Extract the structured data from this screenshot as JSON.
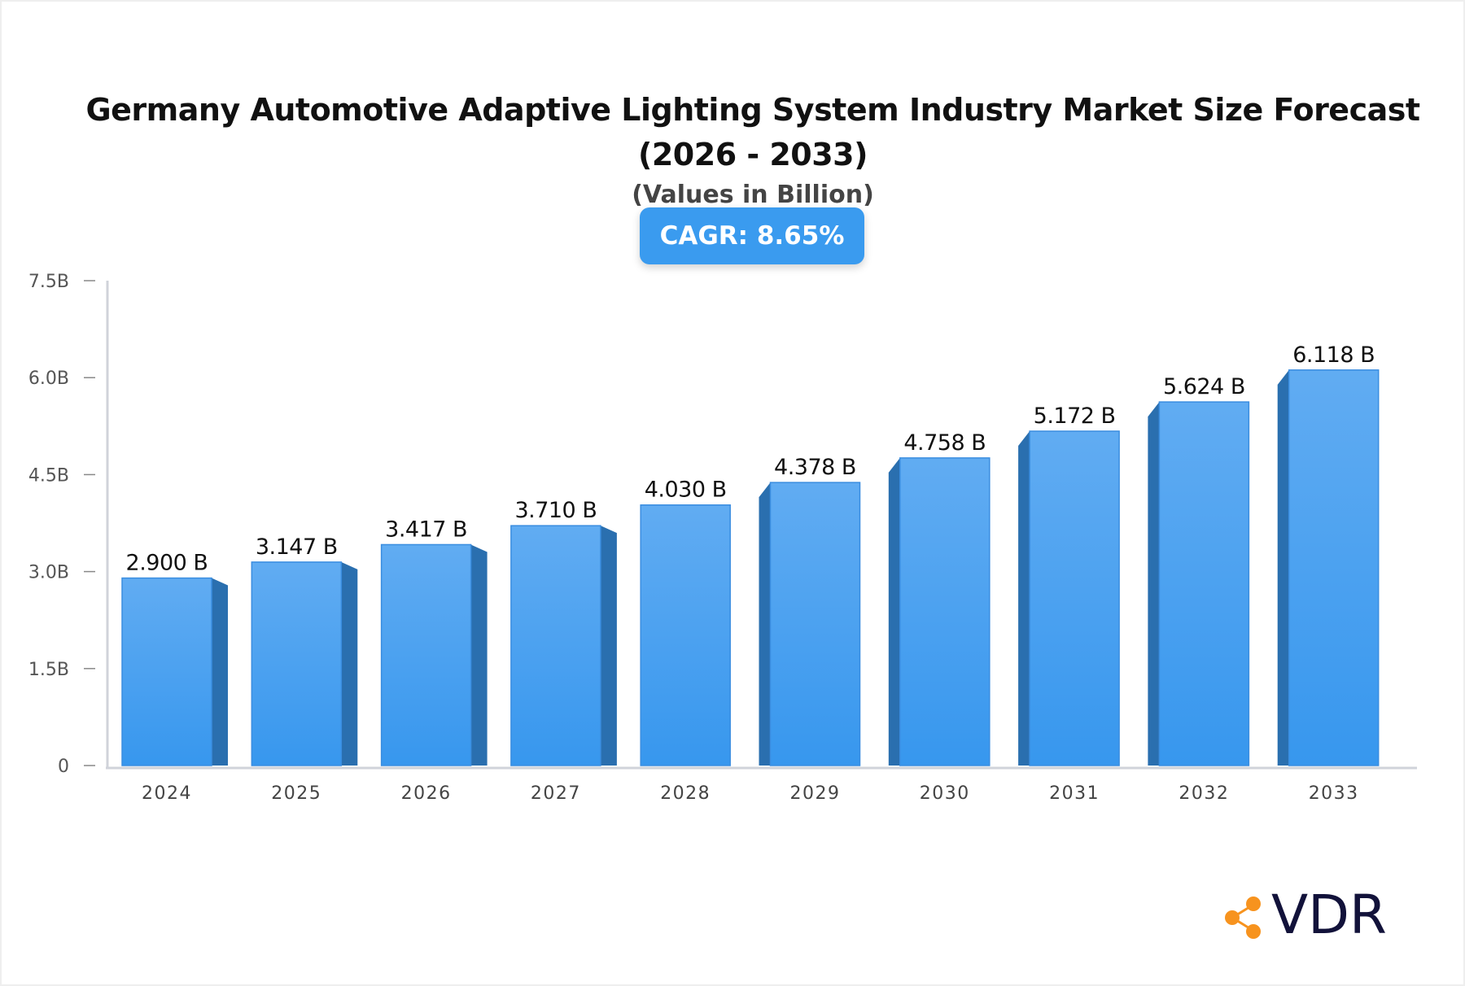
{
  "chart_data": {
    "type": "bar",
    "title_line1": "Germany Automotive Adaptive Lighting System Industry Market Size Forecast",
    "title_line2": "(2026 - 2033)",
    "subtitle": "(Values in Billion)",
    "cagr_label": "CAGR: 8.65%",
    "categories": [
      "2024",
      "2025",
      "2026",
      "2027",
      "2028",
      "2029",
      "2030",
      "2031",
      "2032",
      "2033"
    ],
    "values": [
      2.9,
      3.147,
      3.417,
      3.71,
      4.03,
      4.378,
      4.758,
      5.172,
      5.624,
      6.118
    ],
    "value_labels": [
      "2.900 B",
      "3.147 B",
      "3.417 B",
      "3.710 B",
      "4.030 B",
      "4.378 B",
      "4.758 B",
      "5.172 B",
      "5.624 B",
      "6.118 B"
    ],
    "yticks": [
      0,
      1.5,
      3.0,
      4.5,
      6.0,
      7.5
    ],
    "ytick_labels": [
      "0",
      "1.5B",
      "3.0B",
      "4.5B",
      "6.0B",
      "7.5B"
    ],
    "ylim": [
      0,
      7.5
    ],
    "xlabel": "",
    "ylabel": "",
    "colors": {
      "bar_top": "#61acf2",
      "bar_bottom": "#3797ee",
      "bar_side": "#2a6faf",
      "accent": "#3a9bef"
    }
  },
  "logo": {
    "text": "VDR",
    "accent": "#f7931e"
  }
}
